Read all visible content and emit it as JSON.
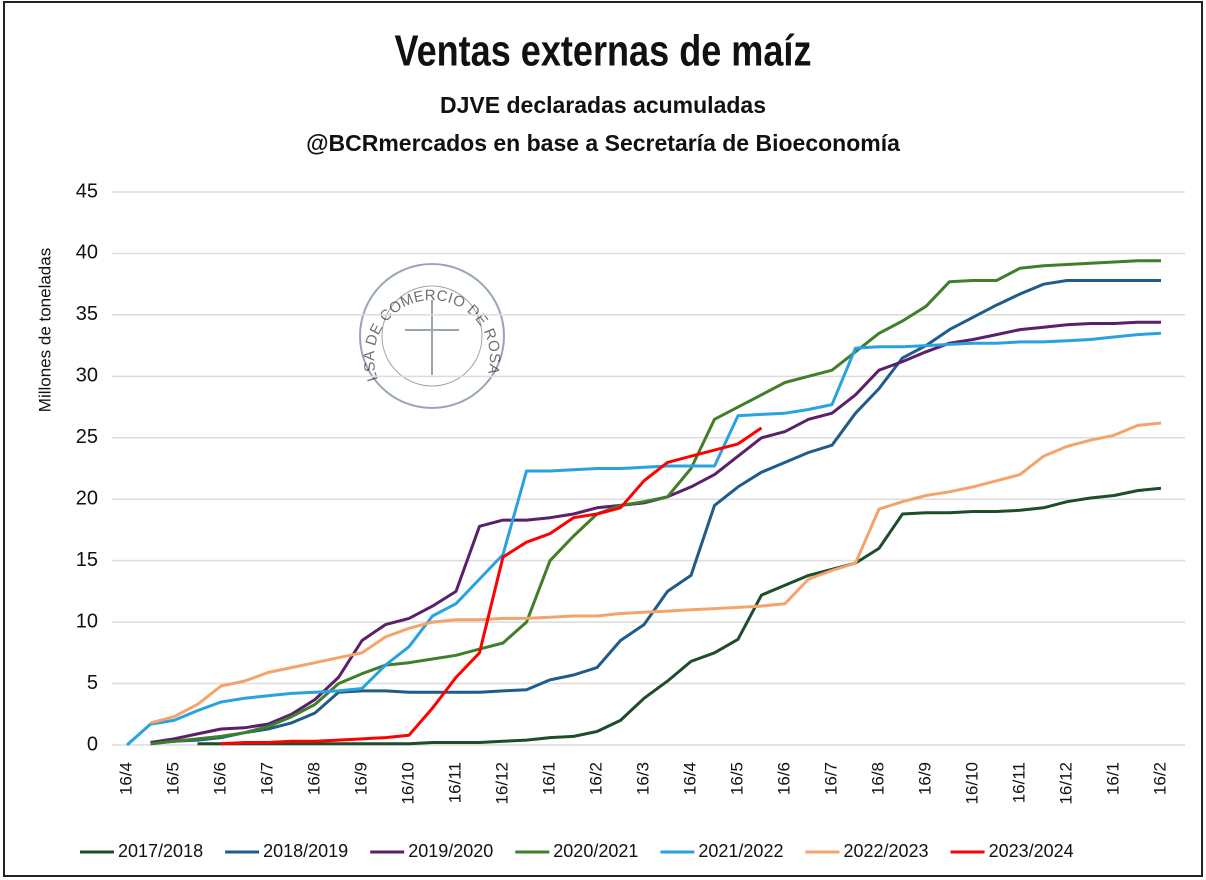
{
  "chart_data": {
    "type": "line",
    "title": "Ventas externas de maíz",
    "subtitle": "DJVE declaradas acumuladas",
    "source": "@BCRmercados en base a Secretaría de Bioeconomía",
    "watermark": "BOLSA DE COMERCIO DE ROSARIO",
    "y_label": "Millones de toneladas",
    "categories": [
      "16/4",
      null,
      "16/5",
      null,
      "16/6",
      null,
      "16/7",
      null,
      "16/8",
      null,
      "16/9",
      null,
      "16/10",
      null,
      "16/11",
      null,
      "16/12",
      null,
      "16/1",
      null,
      "16/2",
      null,
      "16/3",
      null,
      "16/4",
      null,
      "16/5",
      null,
      "16/6",
      null,
      "16/7",
      null,
      "16/8",
      null,
      "16/9",
      null,
      "16/10",
      null,
      "16/11",
      null,
      "16/12",
      null,
      "16/1",
      null,
      "16/2"
    ],
    "ylim": [
      0,
      45
    ],
    "yticks": [
      0,
      5,
      10,
      15,
      20,
      25,
      30,
      35,
      40,
      45
    ],
    "grid": true,
    "series": [
      {
        "name": "2017/2018",
        "color": "#1d4d2a",
        "values": [
          null,
          null,
          null,
          0.1,
          0.1,
          0.1,
          0.1,
          0.1,
          0.1,
          0.1,
          0.1,
          0.1,
          0.1,
          0.2,
          0.2,
          0.2,
          0.3,
          0.4,
          0.6,
          0.7,
          1.1,
          2.0,
          3.8,
          5.2,
          6.8,
          7.5,
          8.6,
          12.2,
          13,
          13.8,
          14.3,
          14.8,
          16,
          18.8,
          18.9,
          18.9,
          19,
          19,
          19.1,
          19.3,
          19.8,
          20.1,
          20.3,
          20.7,
          20.9
        ]
      },
      {
        "name": "2018/2019",
        "color": "#1f5c8a",
        "values": [
          null,
          0.1,
          0.3,
          0.4,
          0.6,
          1.0,
          1.3,
          1.8,
          2.6,
          4.3,
          4.4,
          4.4,
          4.3,
          4.3,
          4.3,
          4.3,
          4.4,
          4.5,
          5.3,
          5.7,
          6.3,
          8.5,
          9.8,
          12.5,
          13.8,
          19.5,
          21,
          22.2,
          23,
          23.8,
          24.4,
          27,
          29,
          31.5,
          32.5,
          33.8,
          34.8,
          35.8,
          36.7,
          37.5,
          37.8,
          37.8,
          37.8,
          37.8,
          37.8
        ]
      },
      {
        "name": "2019/2020",
        "color": "#5b1f6b",
        "values": [
          null,
          0.2,
          0.5,
          0.9,
          1.3,
          1.4,
          1.7,
          2.5,
          3.7,
          5.5,
          8.5,
          9.8,
          10.3,
          11.3,
          12.5,
          17.8,
          18.3,
          18.3,
          18.5,
          18.8,
          19.3,
          19.5,
          19.7,
          20.2,
          21,
          22,
          23.5,
          25,
          25.5,
          26.5,
          27,
          28.5,
          30.5,
          31.2,
          32,
          32.7,
          33,
          33.4,
          33.8,
          34,
          34.2,
          34.3,
          34.3,
          34.4,
          34.4
        ]
      },
      {
        "name": "2020/2021",
        "color": "#3f7f2a",
        "values": [
          null,
          0.1,
          0.3,
          0.5,
          0.7,
          1.0,
          1.5,
          2.3,
          3.3,
          5.0,
          5.8,
          6.5,
          6.7,
          7.0,
          7.3,
          7.8,
          8.3,
          10,
          15,
          17,
          18.8,
          19.5,
          19.8,
          20.2,
          22.5,
          26.5,
          27.5,
          28.5,
          29.5,
          30,
          30.5,
          32,
          33.5,
          34.5,
          35.7,
          37.7,
          37.8,
          37.8,
          38.8,
          39,
          39.1,
          39.2,
          39.3,
          39.4,
          39.4
        ]
      },
      {
        "name": "2021/2022",
        "color": "#29a3e0",
        "values": [
          0,
          1.7,
          2.0,
          2.8,
          3.5,
          3.8,
          4.0,
          4.2,
          4.3,
          4.4,
          4.6,
          6.5,
          8,
          10.5,
          11.5,
          13.5,
          15.5,
          22.3,
          22.3,
          22.4,
          22.5,
          22.5,
          22.6,
          22.7,
          22.7,
          22.7,
          26.8,
          26.9,
          27,
          27.3,
          27.7,
          32.3,
          32.4,
          32.4,
          32.5,
          32.6,
          32.7,
          32.7,
          32.8,
          32.8,
          32.9,
          33,
          33.2,
          33.4,
          33.5
        ]
      },
      {
        "name": "2022/2023",
        "color": "#f4a36b",
        "values": [
          null,
          1.8,
          2.3,
          3.3,
          4.8,
          5.2,
          5.9,
          6.3,
          6.7,
          7.1,
          7.5,
          8.8,
          9.5,
          10.0,
          10.2,
          10.2,
          10.3,
          10.3,
          10.4,
          10.5,
          10.5,
          10.7,
          10.8,
          10.9,
          11.0,
          11.1,
          11.2,
          11.3,
          11.5,
          13.5,
          14.2,
          14.8,
          19.2,
          19.8,
          20.3,
          20.6,
          21,
          21.5,
          22,
          23.5,
          24.3,
          24.8,
          25.2,
          26,
          26.2
        ]
      },
      {
        "name": "2023/2024",
        "color": "#ff0000",
        "values": [
          null,
          null,
          null,
          null,
          0.1,
          0.2,
          0.2,
          0.3,
          0.3,
          0.4,
          0.5,
          0.6,
          0.8,
          3.0,
          5.5,
          7.5,
          15.3,
          16.5,
          17.2,
          18.5,
          18.8,
          19.3,
          21.5,
          23,
          23.5,
          24,
          24.5,
          25.8,
          null,
          null,
          null,
          null,
          null,
          null,
          null,
          null,
          null,
          null,
          null,
          null,
          null,
          null,
          null,
          null,
          null
        ]
      }
    ]
  }
}
